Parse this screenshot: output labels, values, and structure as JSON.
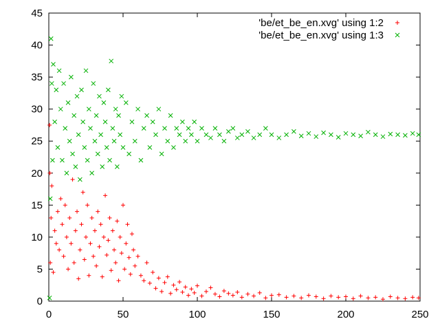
{
  "chart_data": {
    "type": "scatter",
    "xlim": [
      0,
      250
    ],
    "ylim": [
      0,
      45
    ],
    "x_ticks": [
      0,
      50,
      100,
      150,
      200,
      250
    ],
    "y_ticks": [
      0,
      5,
      10,
      15,
      20,
      25,
      30,
      35,
      40,
      45
    ],
    "legend_position": "top-right",
    "grid": false,
    "series": [
      {
        "name": "'be/et_be_en.xvg' using 1:2",
        "color": "#ff0000",
        "marker": "plus",
        "points": [
          [
            0.5,
            27.5
          ],
          [
            0.7,
            20.0
          ],
          [
            1.0,
            6.0
          ],
          [
            1.5,
            13.0
          ],
          [
            2,
            18
          ],
          [
            3,
            4.5
          ],
          [
            4,
            11
          ],
          [
            5,
            9
          ],
          [
            6,
            14
          ],
          [
            7,
            8
          ],
          [
            8,
            16
          ],
          [
            9,
            12
          ],
          [
            10,
            7
          ],
          [
            11,
            15
          ],
          [
            12,
            10
          ],
          [
            13,
            5
          ],
          [
            14,
            13
          ],
          [
            15,
            9
          ],
          [
            16,
            19
          ],
          [
            17,
            6
          ],
          [
            18,
            11
          ],
          [
            19,
            14
          ],
          [
            20,
            3.5
          ],
          [
            21,
            8
          ],
          [
            22,
            12
          ],
          [
            23,
            17
          ],
          [
            24,
            6.5
          ],
          [
            25,
            10
          ],
          [
            26,
            15
          ],
          [
            27,
            4
          ],
          [
            28,
            9
          ],
          [
            29,
            13
          ],
          [
            30,
            7
          ],
          [
            31,
            11
          ],
          [
            32,
            5.5
          ],
          [
            33,
            14
          ],
          [
            34,
            8.5
          ],
          [
            35,
            12
          ],
          [
            36,
            3.8
          ],
          [
            37,
            10
          ],
          [
            38,
            16.5
          ],
          [
            39,
            7.2
          ],
          [
            40,
            9.5
          ],
          [
            41,
            13
          ],
          [
            42,
            4.8
          ],
          [
            43,
            11
          ],
          [
            44,
            8
          ],
          [
            45,
            6
          ],
          [
            46,
            12.5
          ],
          [
            47,
            3.2
          ],
          [
            48,
            10
          ],
          [
            49,
            7.5
          ],
          [
            50,
            15
          ],
          [
            51,
            5
          ],
          [
            52,
            9
          ],
          [
            53,
            12
          ],
          [
            54,
            6.8
          ],
          [
            55,
            4.2
          ],
          [
            56,
            10.5
          ],
          [
            57,
            8
          ],
          [
            58,
            5.5
          ],
          [
            60,
            7
          ],
          [
            62,
            4
          ],
          [
            64,
            3.2
          ],
          [
            66,
            6
          ],
          [
            68,
            2.8
          ],
          [
            70,
            4.5
          ],
          [
            72,
            2
          ],
          [
            74,
            3.6
          ],
          [
            76,
            1.5
          ],
          [
            78,
            2.9
          ],
          [
            80,
            3.8
          ],
          [
            82,
            1.2
          ],
          [
            84,
            2.5
          ],
          [
            86,
            1.8
          ],
          [
            88,
            3
          ],
          [
            90,
            1.4
          ],
          [
            92,
            2.2
          ],
          [
            94,
            0.9
          ],
          [
            96,
            1.9
          ],
          [
            98,
            1.3
          ],
          [
            100,
            2.4
          ],
          [
            103,
            0.8
          ],
          [
            106,
            1.5
          ],
          [
            109,
            2.1
          ],
          [
            112,
            1.1
          ],
          [
            115,
            0.7
          ],
          [
            118,
            1.6
          ],
          [
            121,
            1.2
          ],
          [
            124,
            0.9
          ],
          [
            127,
            1.4
          ],
          [
            130,
            0.6
          ],
          [
            134,
            1.1
          ],
          [
            138,
            0.8
          ],
          [
            142,
            1.3
          ],
          [
            146,
            0.5
          ],
          [
            150,
            0.9
          ],
          [
            155,
            1.0
          ],
          [
            160,
            0.6
          ],
          [
            165,
            0.8
          ],
          [
            170,
            0.5
          ],
          [
            175,
            0.9
          ],
          [
            180,
            0.7
          ],
          [
            185,
            0.4
          ],
          [
            190,
            0.8
          ],
          [
            195,
            0.6
          ],
          [
            200,
            0.7
          ],
          [
            205,
            0.4
          ],
          [
            210,
            0.8
          ],
          [
            215,
            0.5
          ],
          [
            220,
            0.6
          ],
          [
            225,
            0.3
          ],
          [
            230,
            0.7
          ],
          [
            235,
            0.5
          ],
          [
            240,
            0.4
          ],
          [
            245,
            0.6
          ],
          [
            249,
            0.5
          ]
        ]
      },
      {
        "name": "'be/et_be_en.xvg' using 1:3",
        "color": "#00b000",
        "marker": "cross",
        "points": [
          [
            0.5,
            0.5
          ],
          [
            1,
            16
          ],
          [
            1.5,
            41
          ],
          [
            2,
            34
          ],
          [
            2.5,
            22
          ],
          [
            3,
            37
          ],
          [
            4,
            28
          ],
          [
            5,
            33
          ],
          [
            6,
            24
          ],
          [
            7,
            36
          ],
          [
            8,
            30
          ],
          [
            9,
            22
          ],
          [
            10,
            34
          ],
          [
            11,
            27
          ],
          [
            12,
            20
          ],
          [
            13,
            31
          ],
          [
            14,
            25
          ],
          [
            15,
            35
          ],
          [
            16,
            23
          ],
          [
            17,
            29
          ],
          [
            18,
            21
          ],
          [
            19,
            32
          ],
          [
            20,
            26
          ],
          [
            21,
            19
          ],
          [
            22,
            33
          ],
          [
            23,
            28
          ],
          [
            24,
            24
          ],
          [
            25,
            36
          ],
          [
            26,
            22
          ],
          [
            27,
            30
          ],
          [
            28,
            27
          ],
          [
            29,
            20
          ],
          [
            30,
            34
          ],
          [
            31,
            25
          ],
          [
            32,
            29
          ],
          [
            33,
            23
          ],
          [
            34,
            32
          ],
          [
            35,
            26
          ],
          [
            36,
            21
          ],
          [
            37,
            31
          ],
          [
            38,
            28
          ],
          [
            39,
            24
          ],
          [
            40,
            33
          ],
          [
            41,
            22
          ],
          [
            42,
            37.5
          ],
          [
            43,
            27
          ],
          [
            44,
            25
          ],
          [
            45,
            30
          ],
          [
            46,
            21
          ],
          [
            47,
            29
          ],
          [
            48,
            26
          ],
          [
            49,
            32
          ],
          [
            50,
            24
          ],
          [
            52,
            31
          ],
          [
            54,
            23
          ],
          [
            56,
            28
          ],
          [
            58,
            25
          ],
          [
            60,
            30
          ],
          [
            62,
            22
          ],
          [
            64,
            27
          ],
          [
            66,
            29
          ],
          [
            68,
            24
          ],
          [
            70,
            28
          ],
          [
            72,
            26
          ],
          [
            74,
            30
          ],
          [
            76,
            23
          ],
          [
            78,
            27
          ],
          [
            80,
            25
          ],
          [
            82,
            29
          ],
          [
            84,
            24
          ],
          [
            86,
            27
          ],
          [
            88,
            26
          ],
          [
            90,
            28
          ],
          [
            92,
            25
          ],
          [
            94,
            27
          ],
          [
            96,
            26
          ],
          [
            98,
            28
          ],
          [
            100,
            25
          ],
          [
            103,
            27
          ],
          [
            106,
            26
          ],
          [
            109,
            25.5
          ],
          [
            112,
            27
          ],
          [
            115,
            26
          ],
          [
            118,
            25
          ],
          [
            121,
            26.5
          ],
          [
            124,
            27
          ],
          [
            127,
            25.5
          ],
          [
            130,
            26
          ],
          [
            134,
            26.5
          ],
          [
            138,
            25.5
          ],
          [
            142,
            26
          ],
          [
            146,
            27
          ],
          [
            150,
            26
          ],
          [
            155,
            25.5
          ],
          [
            160,
            26
          ],
          [
            165,
            26.5
          ],
          [
            170,
            25.8
          ],
          [
            175,
            26.2
          ],
          [
            180,
            25.7
          ],
          [
            185,
            26.3
          ],
          [
            190,
            26
          ],
          [
            195,
            25.6
          ],
          [
            200,
            26.2
          ],
          [
            205,
            26
          ],
          [
            210,
            25.8
          ],
          [
            215,
            26.4
          ],
          [
            220,
            26
          ],
          [
            225,
            25.7
          ],
          [
            230,
            26.1
          ],
          [
            235,
            26
          ],
          [
            240,
            25.9
          ],
          [
            245,
            26.2
          ],
          [
            249,
            26
          ]
        ]
      }
    ]
  }
}
